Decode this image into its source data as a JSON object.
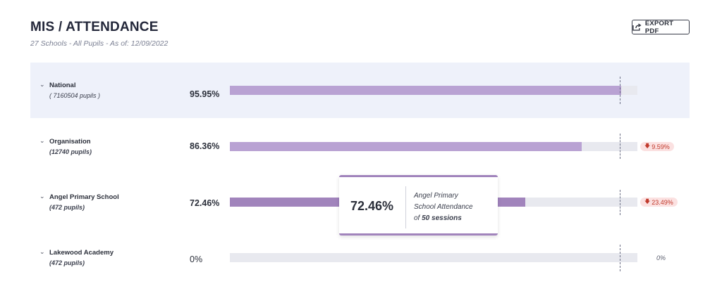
{
  "header": {
    "title": "MIS / ATTENDANCE",
    "subtitle": "27 Schools - All Pupils - As of: 12/09/2022",
    "export_label": "EXPORT PDF"
  },
  "rows": [
    {
      "name": "National",
      "pupils": "( 7160504 pupils )",
      "percent_label": "95.95%",
      "percent": 95.95,
      "delta": ""
    },
    {
      "name": "Organisation",
      "pupils": "(12740 pupils)",
      "percent_label": "86.36%",
      "percent": 86.36,
      "delta": "9.59%"
    },
    {
      "name": "Angel Primary School",
      "pupils": "(472 pupils)",
      "percent_label": "72.46%",
      "percent": 72.46,
      "delta": "23.49%"
    },
    {
      "name": "Lakewood Academy",
      "pupils": "(472 pupils)",
      "percent_label": "0%",
      "percent": 0,
      "zero_label": "0%"
    }
  ],
  "tooltip": {
    "value": "72.46%",
    "text_line1": "Angel Primary",
    "text_line2": "School Attendance",
    "text_of": "of",
    "sessions": "50 sessions"
  },
  "colors": {
    "bar_fill": "#b9a2d3",
    "bar_fill_active": "#a184bc",
    "bar_track": "#e8e9ef",
    "highlight_row": "#eef1fa",
    "delta_bg": "#fbe1e1",
    "delta_text": "#c0392b"
  },
  "icons": {
    "export": "share-export-icon",
    "toggle": "chevron-down-icon",
    "delta": "arrow-down-icon"
  }
}
